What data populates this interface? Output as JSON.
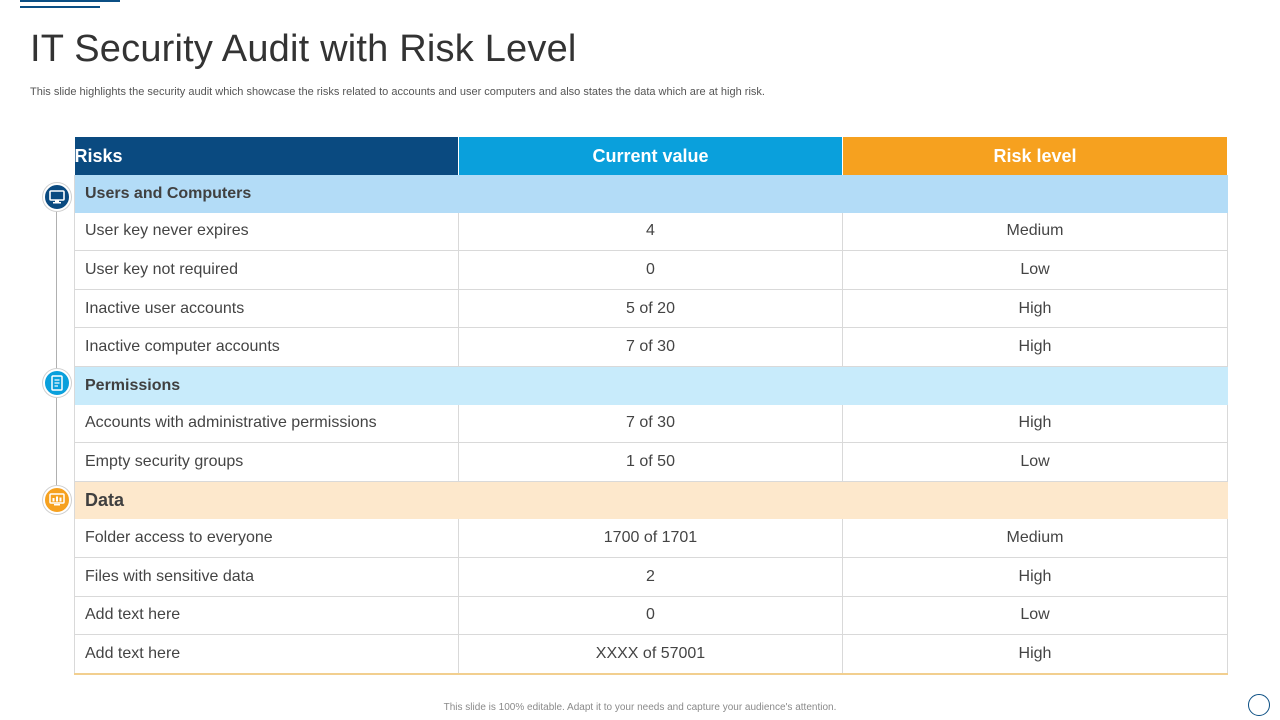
{
  "page": {
    "title": "IT Security Audit with Risk Level",
    "subtitle": "This slide highlights the security audit which showcase the risks related to accounts and user computers and also states the data which are at high risk.",
    "footer": "This slide is 100% editable. Adapt it to your needs and capture your audience's attention."
  },
  "table": {
    "headers": [
      "Risks",
      "Current value",
      "Risk level"
    ],
    "sections": [
      {
        "name": "Users and Computers",
        "icon": "computer-icon",
        "color": "#0a4a80",
        "rows": [
          [
            "User key never expires",
            "4",
            "Medium"
          ],
          [
            "User key not required",
            "0",
            "Low"
          ],
          [
            "Inactive user accounts",
            "5 of 20",
            "High"
          ],
          [
            "Inactive computer accounts",
            "7 of 30",
            "High"
          ]
        ]
      },
      {
        "name": "Permissions",
        "icon": "document-icon",
        "color": "#0aa0dc",
        "rows": [
          [
            "Accounts with administrative permissions",
            "7 of 30",
            "High"
          ],
          [
            "Empty security groups",
            "1 of 50",
            "Low"
          ]
        ]
      },
      {
        "name": "Data",
        "icon": "data-monitor-icon",
        "color": "#f6a11f",
        "rows": [
          [
            "Folder access to everyone",
            "1700 of 1701",
            "Medium"
          ],
          [
            "Files with sensitive data",
            "2",
            "High"
          ],
          [
            "Add text here",
            "0",
            "Low"
          ],
          [
            "Add text here",
            "XXXX of 57001",
            "High"
          ]
        ]
      }
    ]
  }
}
